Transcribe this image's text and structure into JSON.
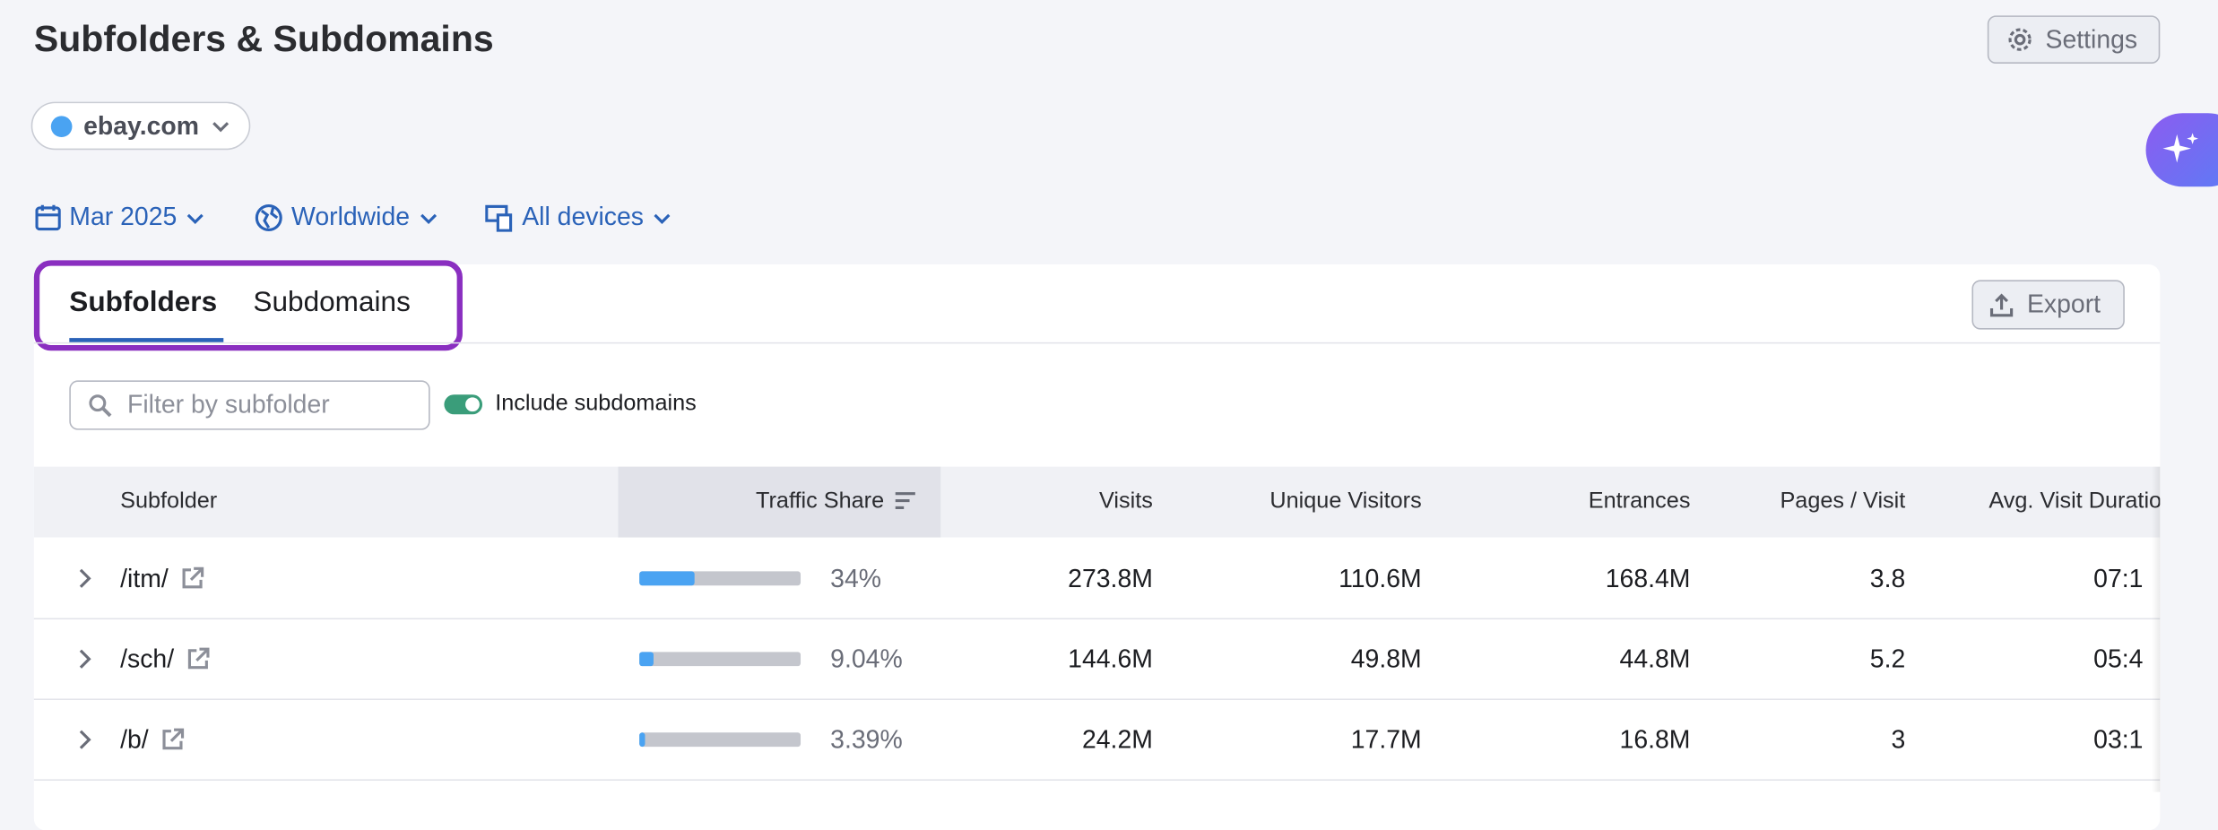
{
  "header": {
    "title": "Subfolders & Subdomains",
    "settings": "Settings"
  },
  "domain": "ebay.com",
  "filters": [
    "Mar 2025",
    "Worldwide",
    "All devices"
  ],
  "tabs": [
    "Subfolders",
    "Subdomains"
  ],
  "export": "Export",
  "search_placeholder": "Filter by subfolder",
  "toggle_label": "Include subdomains",
  "table": {
    "columns": [
      "Subfolder",
      "Traffic Share",
      "Visits",
      "Unique Visitors",
      "Entrances",
      "Pages / Visit",
      "Avg. Visit Duratio"
    ],
    "rows": [
      {
        "name": "/itm/",
        "share": 34,
        "share_label": "34%",
        "visits": "273.8M",
        "unique": "110.6M",
        "entrances": "168.4M",
        "pages": "3.8",
        "duration": "07:1"
      },
      {
        "name": "/sch/",
        "share": 9.04,
        "share_label": "9.04%",
        "visits": "144.6M",
        "unique": "49.8M",
        "entrances": "44.8M",
        "pages": "5.2",
        "duration": "05:4"
      },
      {
        "name": "/b/",
        "share": 3.39,
        "share_label": "3.39%",
        "visits": "24.2M",
        "unique": "17.7M",
        "entrances": "16.8M",
        "pages": "3",
        "duration": "03:1"
      }
    ]
  }
}
